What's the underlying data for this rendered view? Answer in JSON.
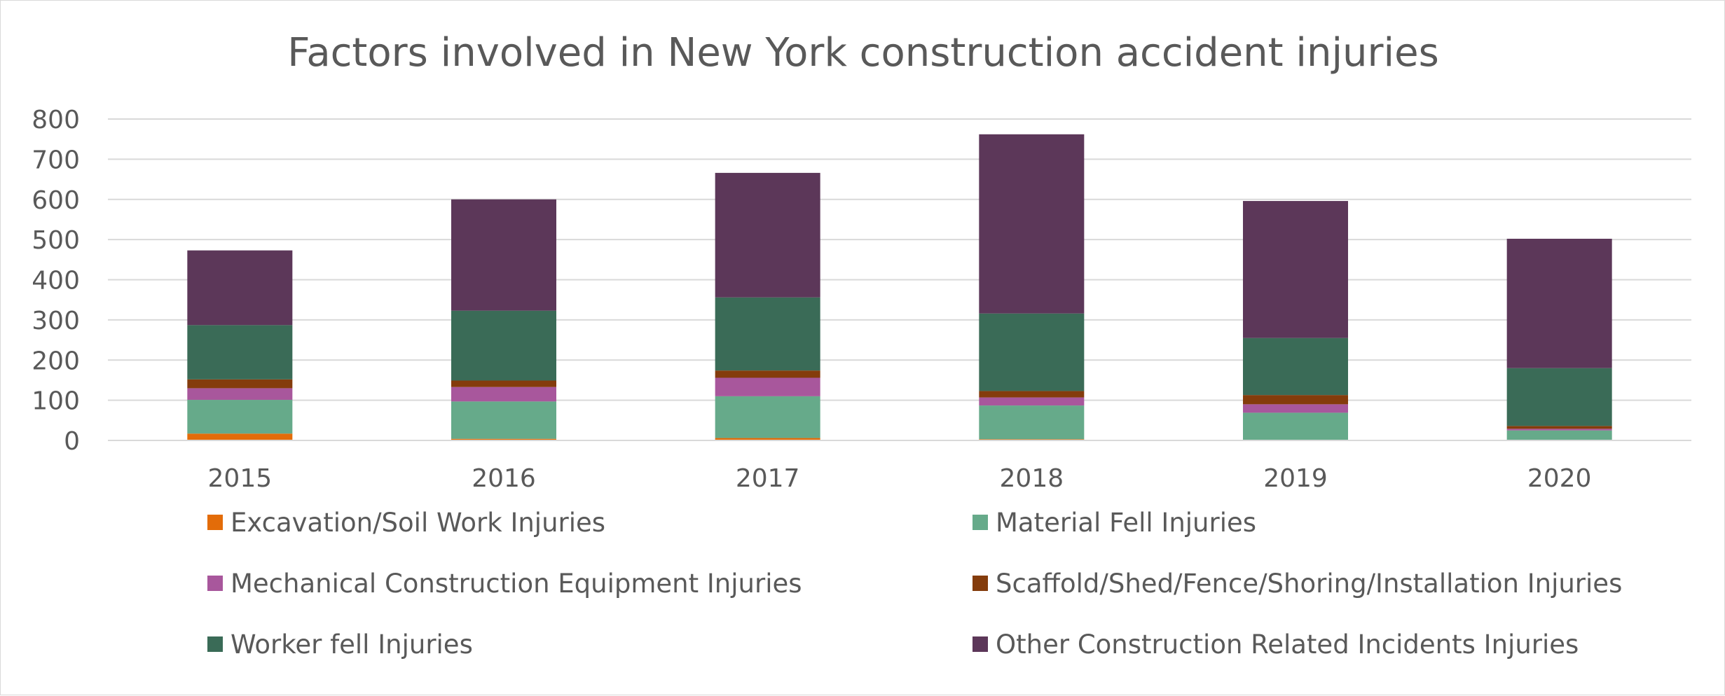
{
  "chart_data": {
    "type": "bar",
    "stacked": true,
    "title": "Factors involved in New York construction accident injuries",
    "categories": [
      "2015",
      "2016",
      "2017",
      "2018",
      "2019",
      "2020"
    ],
    "ylim": [
      0,
      800
    ],
    "yticks": [
      0,
      100,
      200,
      300,
      400,
      500,
      600,
      700,
      800
    ],
    "grid": true,
    "legend_position": "bottom",
    "series": [
      {
        "name": "Excavation/Soil Work Injuries",
        "color": "#e36c09",
        "values": [
          17,
          4,
          6,
          3,
          1,
          1
        ]
      },
      {
        "name": "Material Fell Injuries",
        "color": "#66aa8a",
        "values": [
          84,
          93,
          104,
          84,
          68,
          24
        ]
      },
      {
        "name": "Mechanical Construction Equipment Injuries",
        "color": "#a8579c",
        "values": [
          29,
          36,
          46,
          20,
          21,
          4
        ]
      },
      {
        "name": "Scaffold/Shed/Fence/Shoring/Installation Injuries",
        "color": "#843c0c",
        "values": [
          22,
          16,
          18,
          16,
          23,
          7
        ]
      },
      {
        "name": "Worker fell Injuries",
        "color": "#3a6b57",
        "values": [
          135,
          174,
          182,
          193,
          142,
          144
        ]
      },
      {
        "name": "Other Construction Related Incidents Injuries",
        "color": "#5c3759",
        "values": [
          186,
          277,
          310,
          446,
          341,
          322
        ]
      }
    ]
  }
}
